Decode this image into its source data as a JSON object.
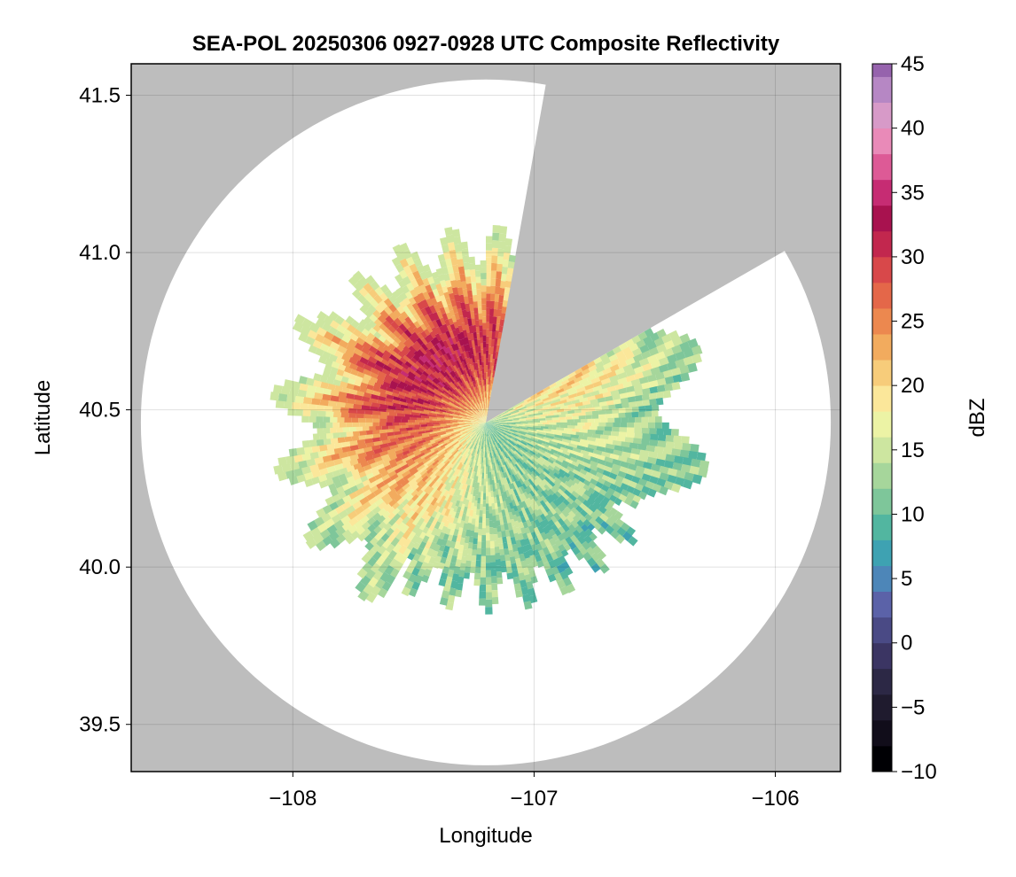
{
  "chart_data": {
    "type": "heatmap",
    "title": "SEA-POL 20250306 0927-0928 UTC Composite Reflectivity",
    "xlabel": "Longitude",
    "ylabel": "Latitude",
    "xlim": [
      -108.67,
      -105.73
    ],
    "ylim": [
      39.35,
      41.6
    ],
    "x_ticks": [
      -108,
      -107,
      -106
    ],
    "x_tick_labels": [
      "−108",
      "−107",
      "−106"
    ],
    "y_ticks": [
      39.5,
      40.0,
      40.5,
      41.0,
      41.5
    ],
    "y_tick_labels": [
      "39.5",
      "40.0",
      "40.5",
      "41.0",
      "41.5"
    ],
    "grid": true,
    "no_coverage_color": "#bdbdbd",
    "radar": {
      "center_lon": -107.2,
      "center_lat": 40.46,
      "range_lon": 1.43,
      "range_lat": 1.09,
      "blocked_sectors_bearing_deg": [
        [
          10,
          60
        ]
      ]
    },
    "echo_peak_dbz": 32,
    "colorbar": {
      "label": "dBZ",
      "min": -10,
      "max": 45,
      "step": 2,
      "ticks": [
        -10,
        -5,
        0,
        5,
        10,
        15,
        20,
        25,
        30,
        35,
        40,
        45
      ],
      "tick_labels": [
        "−10",
        "−5",
        "0",
        "5",
        "10",
        "15",
        "20",
        "25",
        "30",
        "35",
        "40",
        "45"
      ],
      "colors": [
        "#000004",
        "#110d1a",
        "#1f1b2e",
        "#2c2845",
        "#3b3563",
        "#4a4a85",
        "#5b62a8",
        "#4d86b8",
        "#3ea2b2",
        "#52b6a0",
        "#7ec69a",
        "#a6d69b",
        "#cde6a0",
        "#ecf3a5",
        "#fbe79a",
        "#f7cc7a",
        "#f2ab5e",
        "#ec884f",
        "#e46749",
        "#d8484a",
        "#c2274e",
        "#a8124f",
        "#c62c73",
        "#dd5a96",
        "#e98ab8",
        "#d79ac8",
        "#b687c4",
        "#9663ad",
        "#6d3c90",
        "#3b0f5a"
      ]
    }
  }
}
